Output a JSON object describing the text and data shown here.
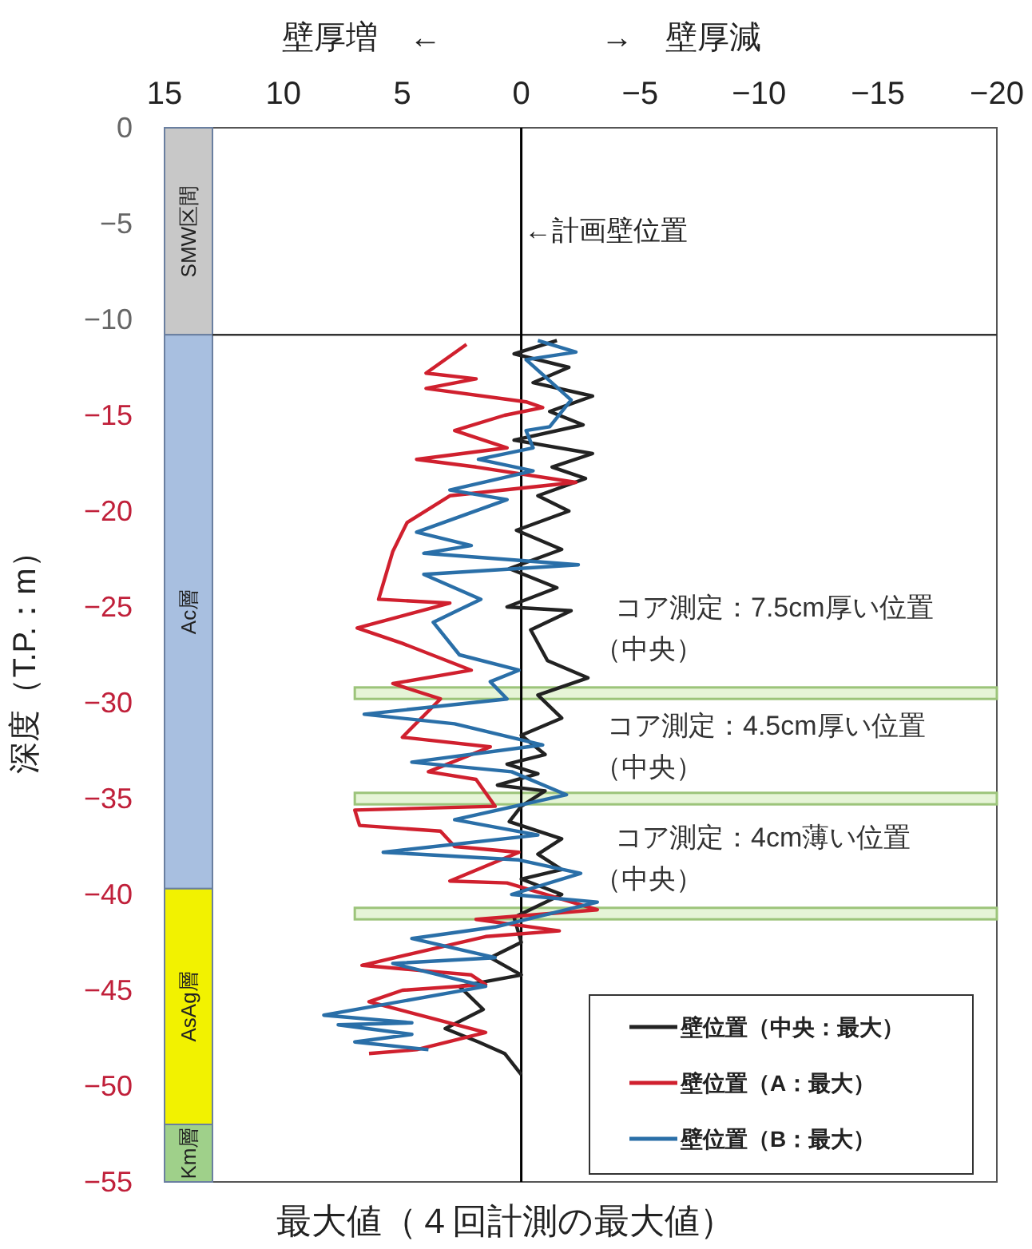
{
  "chart_data": {
    "type": "line",
    "title": "最大値（４回計測の最大値）",
    "xlabel": "壁厚増　←　　　　　→　壁厚減",
    "ylabel": "深度（T.P.：m）",
    "xlim": [
      15,
      -20
    ],
    "xticks": [
      15,
      10,
      5,
      0,
      -5,
      -10,
      -15,
      -20
    ],
    "ylim": [
      -55,
      0
    ],
    "yticks": [
      0,
      -5,
      -10,
      -15,
      -20,
      -25,
      -30,
      -35,
      -40,
      -45,
      -50,
      -55
    ],
    "legend": "bottom right",
    "series": [
      {
        "name": "壁位置（中央：最大）",
        "color": "#222222",
        "x": [
          -1.5,
          0.3,
          -2,
          -0.5,
          -3,
          -1.2,
          -2.6,
          0.3,
          -3,
          -1.3,
          -2.7,
          -0.7,
          -2,
          0.2,
          -1.7,
          0.5,
          -1.5,
          0.6,
          -2.1,
          -0.4,
          -1.1,
          -2.8,
          -0.7,
          -1.7,
          0,
          -1,
          0.6,
          -0.7,
          1,
          -1,
          0,
          0.5,
          -1.7,
          -0.7,
          -1.7,
          0,
          -1.7,
          0.3,
          0,
          1.3,
          0,
          2.6,
          1.6,
          3.2,
          1.8,
          0.7,
          0
        ],
        "values": [
          -11.1,
          -11.8,
          -12.5,
          -13.3,
          -14,
          -14.8,
          -15.5,
          -16.3,
          -17,
          -17.7,
          -18.3,
          -19.2,
          -20,
          -21,
          -22,
          -23,
          -24,
          -25,
          -25.2,
          -26.2,
          -27.8,
          -28.7,
          -29.6,
          -30.8,
          -31.7,
          -32.7,
          -33.2,
          -33.7,
          -34.3,
          -34.6,
          -35.4,
          -36.2,
          -37.1,
          -37.9,
          -38.7,
          -39.2,
          -40,
          -41.2,
          -42.5,
          -43.3,
          -44.2,
          -44.8,
          -46,
          -47,
          -47.7,
          -48.3,
          -49.4
        ]
      },
      {
        "name": "壁位置（A：最大）",
        "color": "#d0202e",
        "x": [
          2.3,
          4.0,
          1.9,
          4.0,
          -0.2,
          -0.9,
          0.7,
          2.8,
          0.6,
          4.4,
          1.9,
          -2.3,
          3.0,
          4.8,
          5.4,
          6.0,
          3.0,
          6.9,
          5.0,
          2.1,
          5.4,
          3.4,
          5.0,
          1.3,
          3.9,
          1.9,
          1.1,
          7.0,
          6.8,
          3.4,
          2.8,
          0.1,
          3.0,
          0.6,
          -3.2,
          1.9,
          -1.6,
          1.5,
          6.7,
          2.1,
          1.5,
          5.0,
          6.4,
          1.5,
          4.4,
          6.4
        ],
        "values": [
          -11.3,
          -12.8,
          -13.1,
          -13.6,
          -14.3,
          -14.6,
          -15.0,
          -15.8,
          -16.7,
          -17.3,
          -17.7,
          -18.5,
          -19.2,
          -20.6,
          -22.1,
          -24.6,
          -24.8,
          -26.1,
          -26.9,
          -28.3,
          -29.0,
          -29.8,
          -31.8,
          -32.3,
          -33.6,
          -34.0,
          -35.4,
          -35.6,
          -36.4,
          -36.7,
          -37.5,
          -37.8,
          -39.3,
          -39.4,
          -40.8,
          -41.3,
          -41.9,
          -42.2,
          -43.7,
          -44.2,
          -44.7,
          -45.0,
          -45.6,
          -47.2,
          -48.1,
          -48.3
        ]
      },
      {
        "name": "壁位置（B：最大）",
        "color": "#2a6fa8",
        "x": [
          -0.7,
          -2.3,
          -0.2,
          -1.2,
          -2.1,
          -1.2,
          -0.2,
          -0.5,
          1.8,
          -0.5,
          3.0,
          0.6,
          4.4,
          2.1,
          4.1,
          -2.4,
          4.1,
          1.7,
          3.7,
          2.6,
          0.1,
          1.3,
          0.6,
          6.6,
          2.8,
          -0.9,
          4.6,
          0.4,
          -1.9,
          2.8,
          -0.7,
          5.8,
          0.1,
          -2.5,
          0.4,
          -3.2,
          1.1,
          4.6,
          1.1,
          5.4,
          1.5,
          8.3,
          4.6,
          7.7,
          4.6,
          7.0,
          3.9
        ],
        "values": [
          -11.1,
          -11.7,
          -12.1,
          -13.2,
          -14.2,
          -15.6,
          -15.8,
          -16.7,
          -17.3,
          -17.9,
          -18.9,
          -19.4,
          -21.1,
          -21.8,
          -22.2,
          -22.8,
          -23.3,
          -24.6,
          -25.8,
          -27.5,
          -28.3,
          -28.9,
          -29.8,
          -30.6,
          -31.1,
          -32.2,
          -33.1,
          -33.6,
          -34.8,
          -36.1,
          -36.9,
          -37.8,
          -38.2,
          -38.9,
          -40.0,
          -40.4,
          -41.7,
          -42.3,
          -43.3,
          -43.6,
          -44.8,
          -46.3,
          -46.7,
          -46.8,
          -47.3,
          -47.7,
          -48.1
        ]
      }
    ],
    "bands": [
      {
        "axis": "y",
        "from": 0,
        "to": -10.8,
        "label": "SMW区間",
        "color": "#c8c8c8"
      },
      {
        "axis": "y",
        "from": -10.8,
        "to": -39.7,
        "label": "Ac層",
        "color": "#a8bfe0"
      },
      {
        "axis": "y",
        "from": -39.7,
        "to": -52,
        "label": "AsAg層",
        "color": "#f2f200"
      },
      {
        "axis": "y",
        "from": -52,
        "to": -55,
        "label": "Km層",
        "color": "#9fd08a"
      },
      {
        "axis": "y",
        "from": -29.2,
        "to": -29.8,
        "color": "#d6ecbd"
      },
      {
        "axis": "y",
        "from": -34.7,
        "to": -35.3,
        "color": "#d6ecbd"
      },
      {
        "axis": "y",
        "from": -40.7,
        "to": -41.3,
        "color": "#d6ecbd"
      }
    ],
    "ref_lines": [
      {
        "axis": "y",
        "value": -10.8,
        "color": "#333333"
      },
      {
        "axis": "x",
        "value": 0,
        "label": "←計画壁位置",
        "color": "#000000"
      }
    ],
    "annotations": [
      "コア測定：7.5cm厚い位置",
      "（中央）",
      "コア測定：4.5cm厚い位置",
      "（中央）",
      "コア測定：4cm薄い位置",
      "（中央）"
    ]
  }
}
